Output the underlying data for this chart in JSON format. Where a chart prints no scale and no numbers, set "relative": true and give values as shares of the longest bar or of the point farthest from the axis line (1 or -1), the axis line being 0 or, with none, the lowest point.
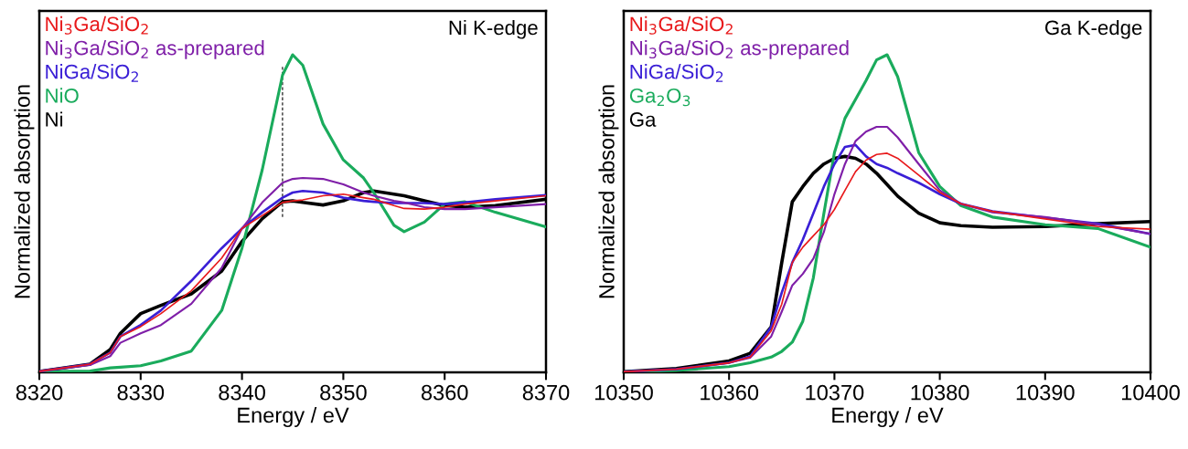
{
  "chart_data": [
    {
      "type": "line",
      "title": "Ni K-edge",
      "xlabel": "Energy / eV",
      "ylabel": "Normalized absorption",
      "relative": true,
      "legend": "top left",
      "x": [
        8320,
        8325,
        8327,
        8328,
        8330,
        8332,
        8335,
        8338,
        8340,
        8342,
        8344,
        8345,
        8346,
        8348,
        8350,
        8352,
        8353,
        8355,
        8356,
        8358,
        8360,
        8362,
        8365,
        8370
      ],
      "xlim": [
        8320,
        8370
      ],
      "xticks": [
        8320,
        8330,
        8340,
        8350,
        8360,
        8370
      ],
      "ref_lines": [
        {
          "axis": "x",
          "value": 8344,
          "color": "#000000",
          "line_style": "dashed"
        }
      ],
      "series": [
        {
          "name": "Ni$_{3}$Ga/SiO$_{2}$",
          "color": "#e8191b",
          "values": [
            0.003,
            0.026,
            0.062,
            0.113,
            0.144,
            0.185,
            0.257,
            0.36,
            0.453,
            0.494,
            0.535,
            0.54,
            0.543,
            0.556,
            0.561,
            0.55,
            0.545,
            0.525,
            0.516,
            0.514,
            0.52,
            0.53,
            0.54,
            0.556
          ]
        },
        {
          "name": "Ni$_{3}$Ga/SiO$_{2}$ as-prepared",
          "color": "#7f1fa8",
          "values": [
            0.003,
            0.023,
            0.051,
            0.093,
            0.123,
            0.149,
            0.216,
            0.329,
            0.453,
            0.535,
            0.597,
            0.609,
            0.612,
            0.609,
            0.592,
            0.566,
            0.556,
            0.54,
            0.535,
            0.52,
            0.514,
            0.514,
            0.52,
            0.53
          ]
        },
        {
          "name": "NiGa/SiO$_{2}$",
          "color": "#3a1fd6",
          "values": [
            0.003,
            0.026,
            0.062,
            0.113,
            0.149,
            0.195,
            0.288,
            0.391,
            0.453,
            0.504,
            0.55,
            0.566,
            0.571,
            0.566,
            0.55,
            0.54,
            0.537,
            0.533,
            0.533,
            0.533,
            0.53,
            0.535,
            0.545,
            0.558
          ]
        },
        {
          "name": "NiO",
          "color": "#1aab5c",
          "values": [
            0.002,
            0.004,
            0.014,
            0.016,
            0.021,
            0.036,
            0.067,
            0.195,
            0.391,
            0.638,
            0.936,
            1.0,
            0.967,
            0.782,
            0.669,
            0.612,
            0.566,
            0.463,
            0.443,
            0.473,
            0.53,
            0.537,
            0.504,
            0.458
          ]
        },
        {
          "name": "Ni",
          "color": "#000000",
          "values": [
            0.003,
            0.026,
            0.072,
            0.123,
            0.185,
            0.211,
            0.247,
            0.319,
            0.412,
            0.484,
            0.537,
            0.54,
            0.535,
            0.527,
            0.54,
            0.566,
            0.571,
            0.561,
            0.556,
            0.54,
            0.525,
            0.52,
            0.525,
            0.545
          ]
        }
      ]
    },
    {
      "type": "line",
      "title": "Ga K-edge",
      "xlabel": "Energy / eV",
      "ylabel": "Normalized absorption",
      "relative": true,
      "legend": "top left",
      "x": [
        10350,
        10355,
        10360,
        10362,
        10364,
        10365,
        10366,
        10367,
        10368,
        10369,
        10370,
        10371,
        10372,
        10373,
        10374,
        10375,
        10376,
        10378,
        10380,
        10382,
        10385,
        10390,
        10395,
        10400
      ],
      "xlim": [
        10350,
        10400
      ],
      "xticks": [
        10350,
        10360,
        10370,
        10380,
        10390,
        10400
      ],
      "series": [
        {
          "name": "Ni$_{3}$Ga/SiO$_{2}$",
          "color": "#e8191b",
          "values": [
            0.002,
            0.01,
            0.03,
            0.048,
            0.131,
            0.215,
            0.346,
            0.394,
            0.43,
            0.465,
            0.513,
            0.573,
            0.632,
            0.668,
            0.686,
            0.69,
            0.674,
            0.621,
            0.567,
            0.531,
            0.507,
            0.483,
            0.459,
            0.451
          ]
        },
        {
          "name": "Ni$_{3}$Ga/SiO$_{2}$ as-prepared",
          "color": "#7f1fa8",
          "values": [
            0.002,
            0.01,
            0.03,
            0.046,
            0.113,
            0.191,
            0.274,
            0.31,
            0.358,
            0.442,
            0.561,
            0.656,
            0.728,
            0.758,
            0.773,
            0.773,
            0.74,
            0.656,
            0.573,
            0.531,
            0.504,
            0.489,
            0.465,
            0.436
          ]
        },
        {
          "name": "NiGa/SiO$_{2}$",
          "color": "#3a1fd6",
          "values": [
            0.002,
            0.01,
            0.03,
            0.05,
            0.143,
            0.251,
            0.346,
            0.418,
            0.501,
            0.585,
            0.656,
            0.71,
            0.716,
            0.68,
            0.656,
            0.644,
            0.627,
            0.597,
            0.561,
            0.531,
            0.507,
            0.487,
            0.468,
            0.436
          ]
        },
        {
          "name": "Ga$_{2}$O$_{3}$",
          "color": "#1aab5c",
          "values": [
            0.001,
            0.006,
            0.018,
            0.03,
            0.048,
            0.066,
            0.095,
            0.161,
            0.298,
            0.501,
            0.692,
            0.8,
            0.859,
            0.919,
            0.984,
            1.0,
            0.931,
            0.692,
            0.585,
            0.525,
            0.489,
            0.465,
            0.453,
            0.394
          ]
        },
        {
          "name": "Ga",
          "color": "#000000",
          "values": [
            0.002,
            0.012,
            0.036,
            0.06,
            0.143,
            0.346,
            0.537,
            0.585,
            0.627,
            0.656,
            0.674,
            0.68,
            0.674,
            0.656,
            0.627,
            0.591,
            0.555,
            0.501,
            0.471,
            0.462,
            0.457,
            0.459,
            0.468,
            0.475
          ]
        }
      ]
    }
  ]
}
